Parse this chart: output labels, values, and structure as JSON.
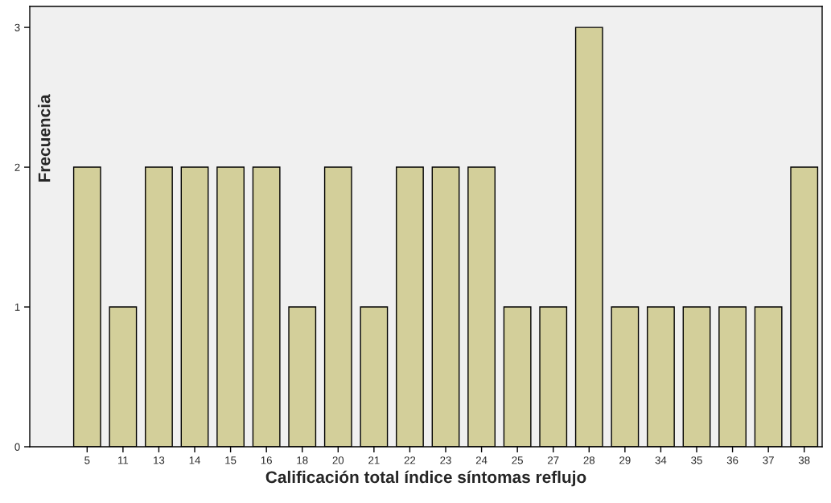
{
  "chart_data": {
    "type": "bar",
    "xlabel": "Calificación total índice síntomas reflujo",
    "ylabel": "Frecuencia",
    "categories": [
      "5",
      "11",
      "13",
      "14",
      "15",
      "16",
      "18",
      "20",
      "21",
      "22",
      "23",
      "24",
      "25",
      "27",
      "28",
      "29",
      "34",
      "35",
      "36",
      "37",
      "38"
    ],
    "values": [
      2,
      1,
      2,
      2,
      2,
      2,
      1,
      2,
      1,
      2,
      2,
      2,
      1,
      1,
      3,
      1,
      1,
      1,
      1,
      1,
      2
    ],
    "color": "#d3cf9a",
    "ylim": [
      0,
      3.15
    ],
    "yticks": [
      0,
      1,
      2,
      3
    ],
    "grid": false,
    "legend": false
  }
}
